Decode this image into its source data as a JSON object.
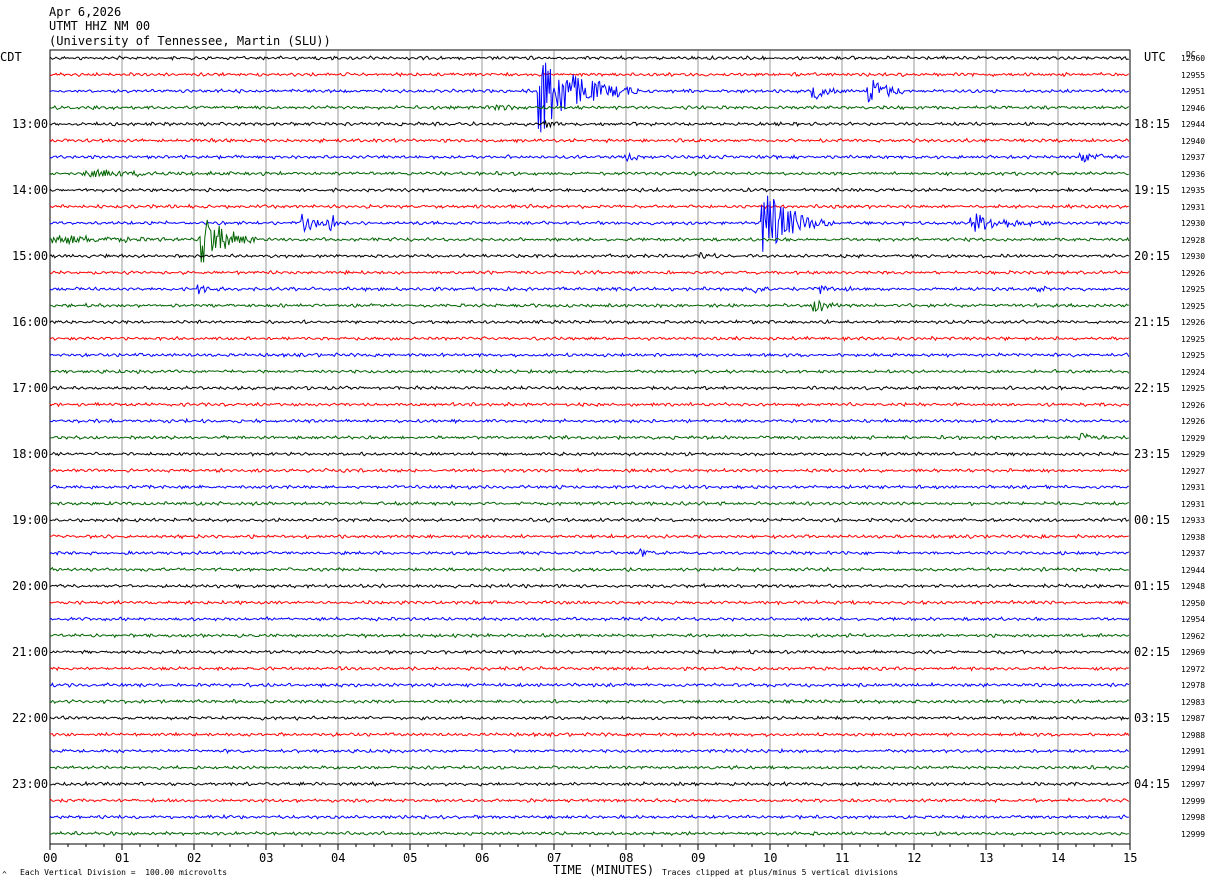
{
  "header": {
    "date": "Apr 6,2026",
    "station": "UTMT HHZ NM 00",
    "institution": "(University of Tennessee, Martin (SLU))"
  },
  "left_timezone": "CDT",
  "right_timezone": "UTC",
  "dc_label": "DC",
  "footer": {
    "scale_note": "Each Vertical Division =  100.00 microvolts",
    "xlabel": "TIME (MINUTES)",
    "clip_note": "Traces clipped at plus/minus 5 vertical divisions",
    "corner_mark": "^"
  },
  "colors": {
    "trace_cycle": [
      "#000000",
      "#ff0000",
      "#0000ff",
      "#006400"
    ],
    "grid": "#808080"
  },
  "chart_data": {
    "type": "line",
    "xlabel": "TIME (MINUTES)",
    "xlim": [
      0,
      15
    ],
    "x_ticks": [
      "00",
      "01",
      "02",
      "03",
      "04",
      "05",
      "06",
      "07",
      "08",
      "09",
      "10",
      "11",
      "12",
      "13",
      "14",
      "15"
    ],
    "left_hour_labels": [
      "13:00",
      "14:00",
      "15:00",
      "16:00",
      "17:00",
      "18:00",
      "19:00",
      "20:00",
      "21:00",
      "22:00",
      "23:00"
    ],
    "right_hour_labels": [
      "18:15",
      "19:15",
      "20:15",
      "21:15",
      "22:15",
      "23:15",
      "00:15",
      "01:15",
      "02:15",
      "03:15",
      "04:15"
    ],
    "dc_offsets": [
      12960,
      12955,
      12951,
      12946,
      12944,
      12940,
      12937,
      12936,
      12935,
      12931,
      12930,
      12928,
      12930,
      12926,
      12925,
      12925,
      12926,
      12925,
      12925,
      12924,
      12925,
      12926,
      12926,
      12929,
      12929,
      12927,
      12931,
      12931,
      12933,
      12938,
      12937,
      12944,
      12948,
      12950,
      12954,
      12962,
      12969,
      12972,
      12978,
      12983,
      12987,
      12988,
      12991,
      12994,
      12997,
      12999,
      12998,
      12999
    ],
    "events": [
      {
        "trace": 2,
        "minute": 6.78,
        "duration": 1.4,
        "amplitude": 6.0
      },
      {
        "trace": 2,
        "minute": 10.6,
        "duration": 0.5,
        "amplitude": 1.3
      },
      {
        "trace": 2,
        "minute": 11.35,
        "duration": 0.6,
        "amplitude": 2.2
      },
      {
        "trace": 3,
        "minute": 6.2,
        "duration": 0.4,
        "amplitude": 0.5
      },
      {
        "trace": 4,
        "minute": 6.9,
        "duration": 0.3,
        "amplitude": 0.6
      },
      {
        "trace": 6,
        "minute": 8.0,
        "duration": 0.3,
        "amplitude": 0.6
      },
      {
        "trace": 6,
        "minute": 14.3,
        "duration": 0.5,
        "amplitude": 0.9
      },
      {
        "trace": 7,
        "minute": 0.5,
        "duration": 2.3,
        "amplitude": 0.4
      },
      {
        "trace": 10,
        "minute": 3.5,
        "duration": 0.5,
        "amplitude": 1.2
      },
      {
        "trace": 10,
        "minute": 3.9,
        "duration": 0.1,
        "amplitude": 2.0
      },
      {
        "trace": 10,
        "minute": 9.9,
        "duration": 1.0,
        "amplitude": 4.8
      },
      {
        "trace": 10,
        "minute": 12.8,
        "duration": 1.2,
        "amplitude": 1.3
      },
      {
        "trace": 11,
        "minute": 0.0,
        "duration": 2.0,
        "amplitude": 0.6
      },
      {
        "trace": 11,
        "minute": 2.1,
        "duration": 0.8,
        "amplitude": 4.0
      },
      {
        "trace": 12,
        "minute": 9.0,
        "duration": 0.3,
        "amplitude": 0.5
      },
      {
        "trace": 14,
        "minute": 2.05,
        "duration": 0.3,
        "amplitude": 0.8
      },
      {
        "trace": 14,
        "minute": 9.75,
        "duration": 0.3,
        "amplitude": 0.8
      },
      {
        "trace": 14,
        "minute": 10.7,
        "duration": 0.5,
        "amplitude": 0.6
      },
      {
        "trace": 14,
        "minute": 13.7,
        "duration": 0.3,
        "amplitude": 0.5
      },
      {
        "trace": 15,
        "minute": 10.6,
        "duration": 0.6,
        "amplitude": 0.8
      },
      {
        "trace": 23,
        "minute": 14.3,
        "duration": 0.4,
        "amplitude": 0.6
      },
      {
        "trace": 30,
        "minute": 8.2,
        "duration": 0.4,
        "amplitude": 0.4
      }
    ]
  }
}
